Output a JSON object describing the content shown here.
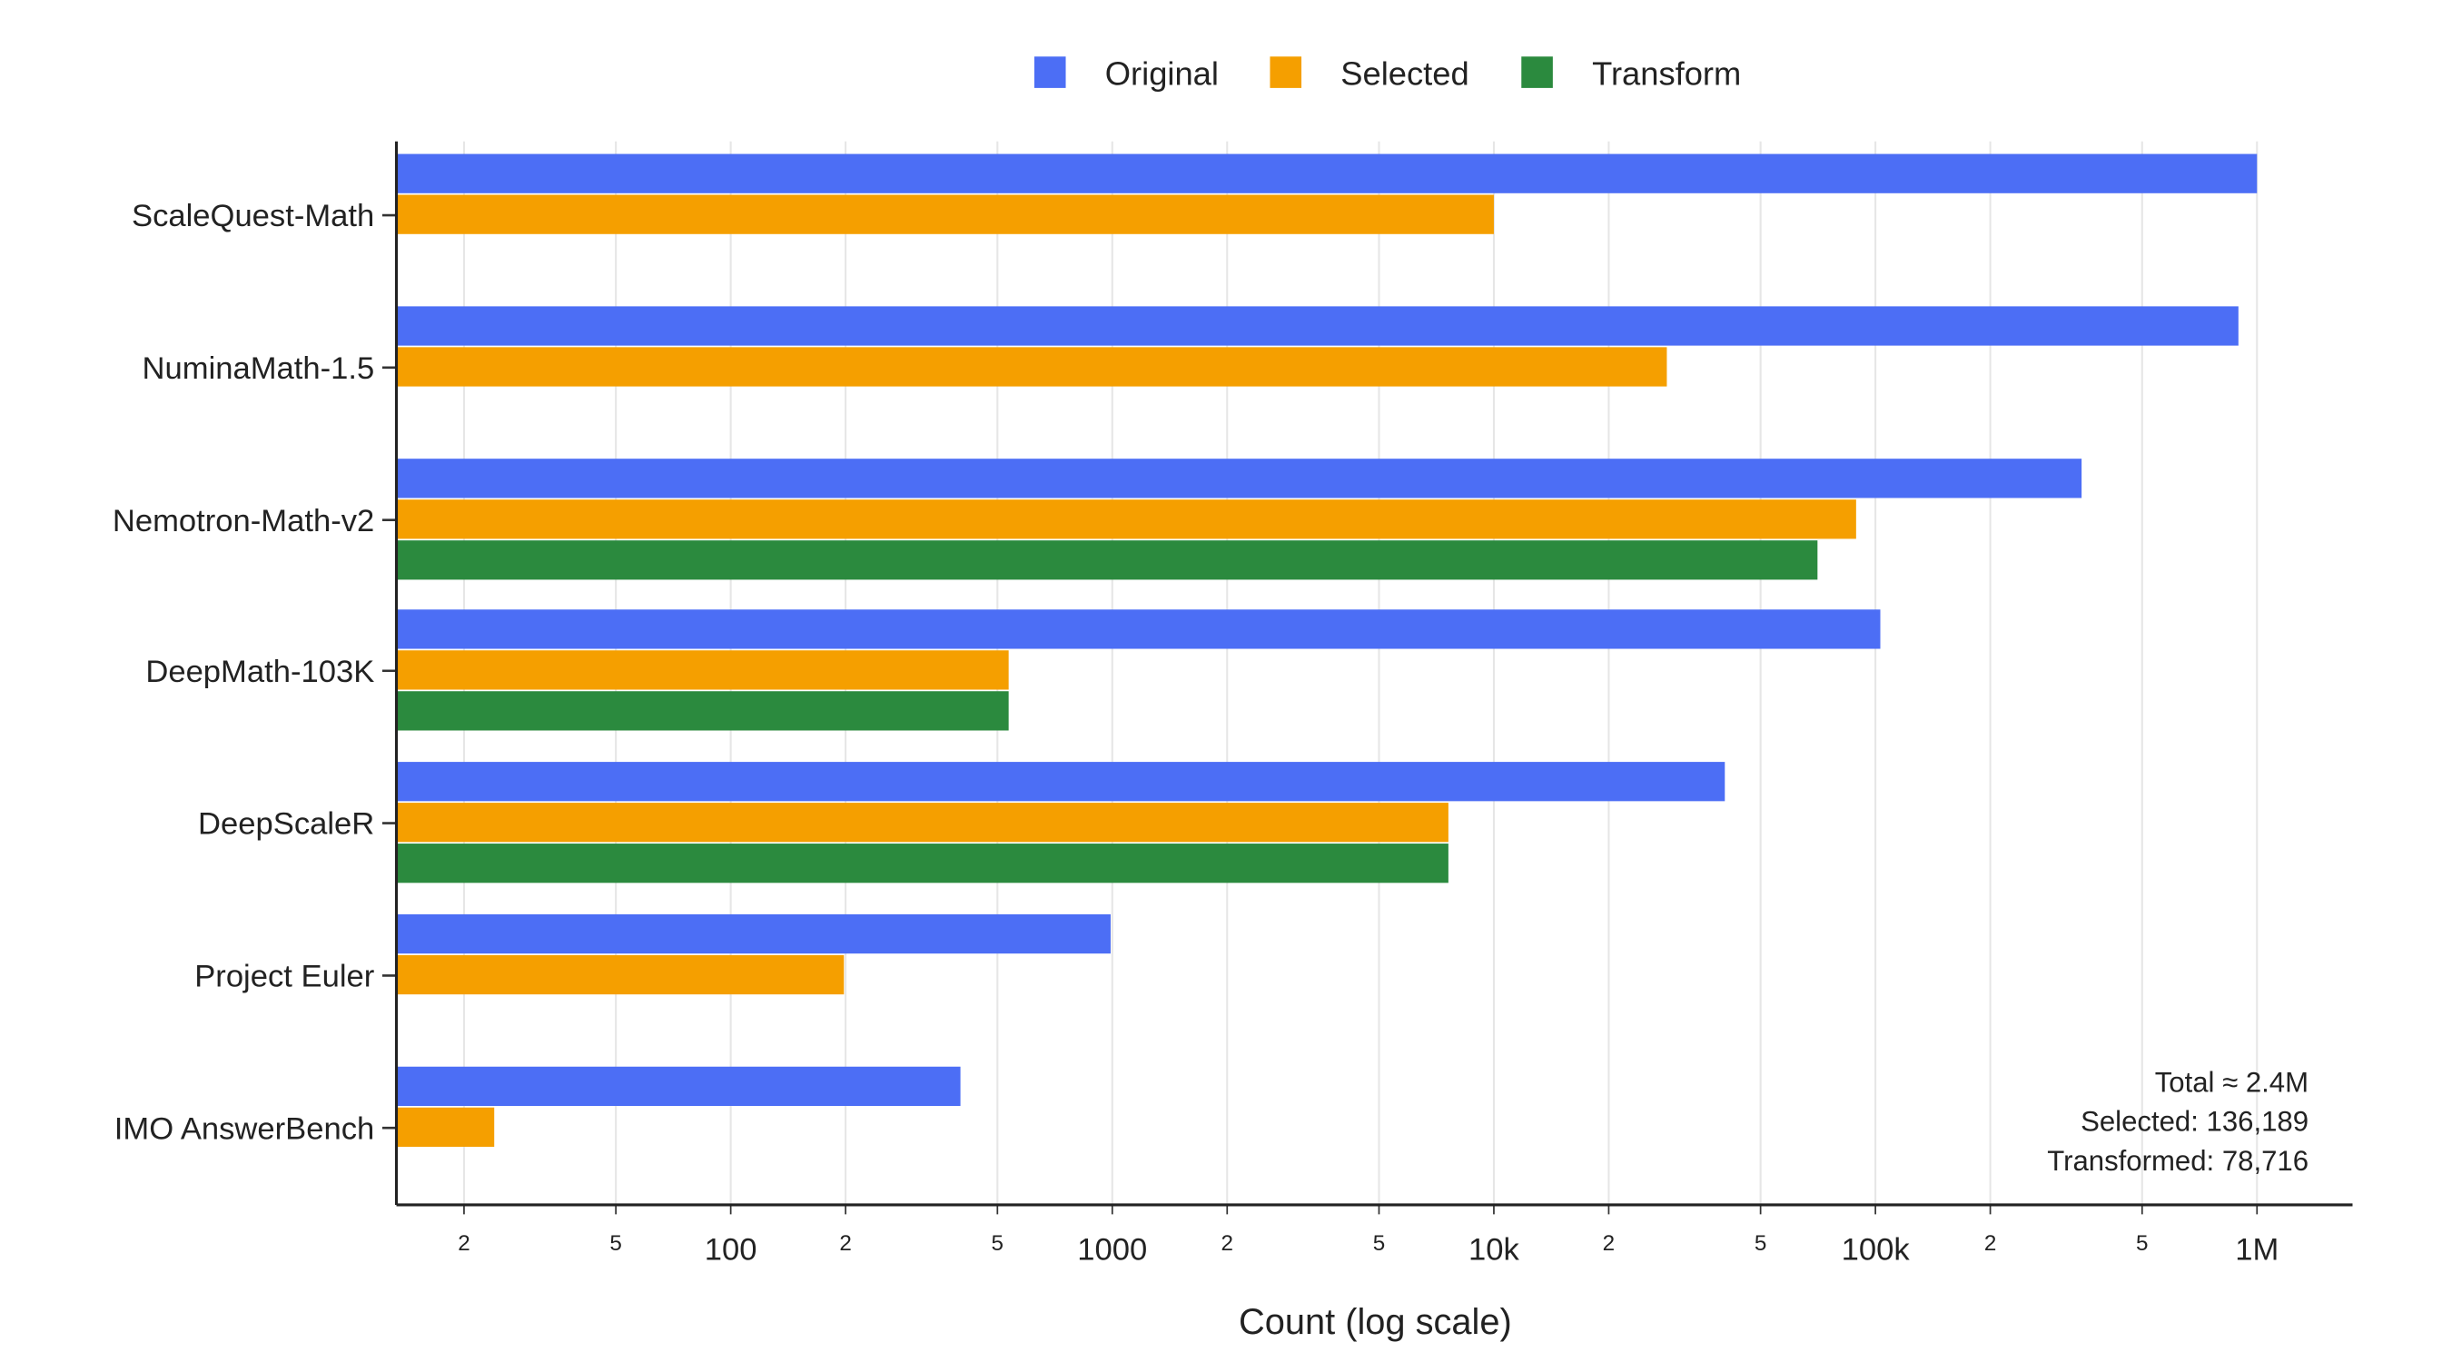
{
  "chart_data": {
    "type": "bar",
    "orientation": "horizontal",
    "xlabel": "Count (log scale)",
    "xscale": "log",
    "xlim": [
      13.3,
      1780000
    ],
    "grid": "vertical",
    "legend_placement": "top-center",
    "categories": [
      "ScaleQuest-Math",
      "NuminaMath-1.5",
      "Nemotron-Math-v2",
      "DeepMath-103K",
      "DeepScaleR",
      "Project Euler",
      "IMO AnswerBench"
    ],
    "series": [
      {
        "name": "Original",
        "color": "#4c6ef5",
        "values": [
          1000000,
          894000,
          347000,
          103000,
          40300,
          990,
          400
        ]
      },
      {
        "name": "Selected",
        "color": "#f59f00",
        "values": [
          10000,
          28400,
          89000,
          535,
          7600,
          198,
          24
        ]
      },
      {
        "name": "Transform",
        "color": "#2b8a3e",
        "values": [
          null,
          null,
          70500,
          535,
          7600,
          null,
          null
        ]
      }
    ],
    "ticks": [
      {
        "value": 20,
        "label": "2",
        "major": false
      },
      {
        "value": 50,
        "label": "5",
        "major": false
      },
      {
        "value": 100,
        "label": "100",
        "major": true
      },
      {
        "value": 200,
        "label": "2",
        "major": false
      },
      {
        "value": 500,
        "label": "5",
        "major": false
      },
      {
        "value": 1000,
        "label": "1000",
        "major": true
      },
      {
        "value": 2000,
        "label": "2",
        "major": false
      },
      {
        "value": 5000,
        "label": "5",
        "major": false
      },
      {
        "value": 10000,
        "label": "10k",
        "major": true
      },
      {
        "value": 20000,
        "label": "2",
        "major": false
      },
      {
        "value": 50000,
        "label": "5",
        "major": false
      },
      {
        "value": 100000,
        "label": "100k",
        "major": true
      },
      {
        "value": 200000,
        "label": "2",
        "major": false
      },
      {
        "value": 500000,
        "label": "5",
        "major": false
      },
      {
        "value": 1000000,
        "label": "1M",
        "major": true
      }
    ],
    "annotations": [
      "Total ≈ 2.4M",
      "Selected: 136,189",
      "Transformed: 78,716"
    ]
  }
}
